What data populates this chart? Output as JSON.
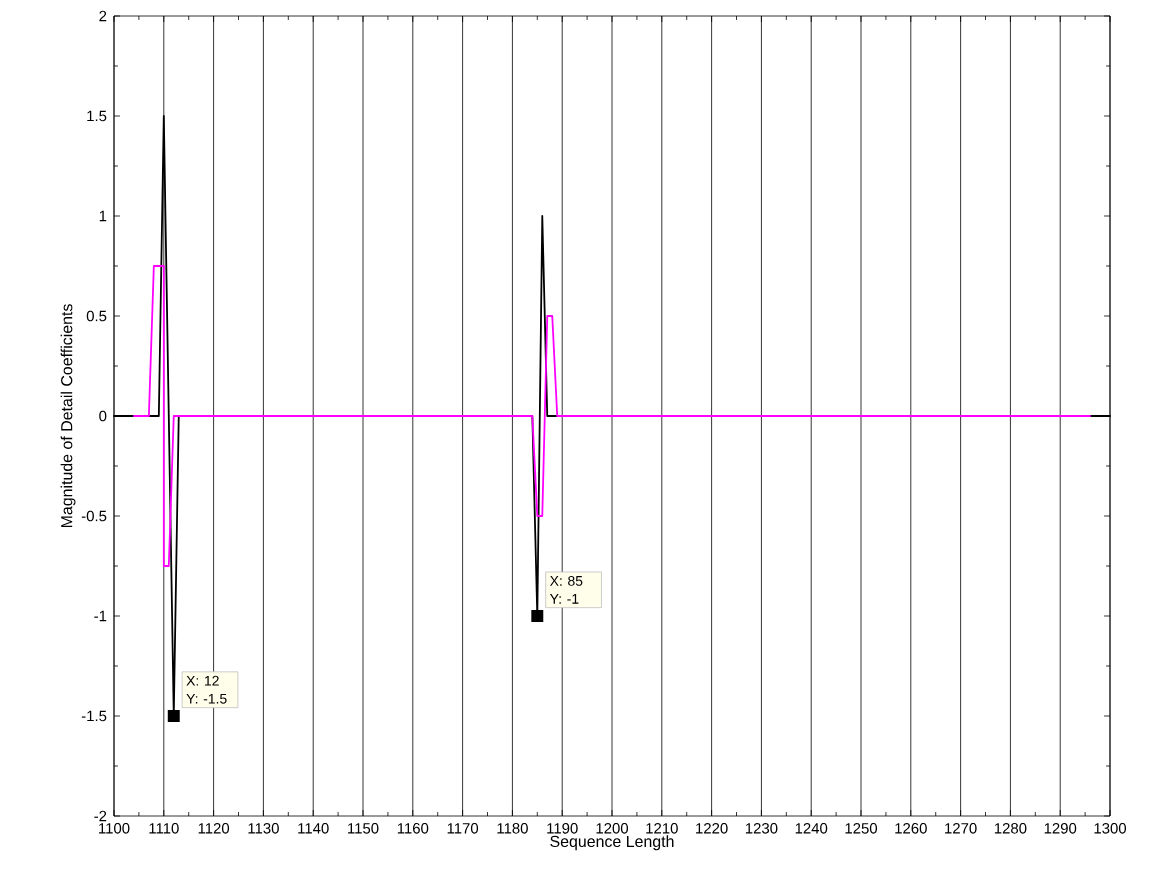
{
  "chart_data": {
    "type": "line",
    "xlabel": "Sequence Length",
    "ylabel": "Magnitude of Detail Coefficients",
    "series": [
      {
        "color": "#000000",
        "x": [
          1100,
          1109,
          1110,
          1112,
          1113,
          1184,
          1185,
          1186,
          1187,
          1300
        ],
        "values": [
          0,
          0,
          1.5,
          -1.5,
          0,
          0,
          -1,
          1,
          0,
          0
        ]
      },
      {
        "color": "#ff00ff",
        "x": [
          1104,
          1107,
          1108,
          1110,
          1110,
          1111,
          1112,
          1184,
          1185,
          1186,
          1187,
          1188,
          1189,
          1296
        ],
        "values": [
          0,
          0,
          0.75,
          0.75,
          -0.75,
          -0.75,
          0,
          0,
          -0.5,
          -0.5,
          0.5,
          0.5,
          0,
          0
        ]
      }
    ],
    "xlim": [
      1100,
      1300
    ],
    "xticks": [
      1100,
      1110,
      1120,
      1130,
      1140,
      1150,
      1160,
      1170,
      1180,
      1190,
      1200,
      1210,
      1220,
      1230,
      1240,
      1250,
      1260,
      1270,
      1280,
      1290,
      1300
    ],
    "ylim": [
      -2,
      2
    ],
    "yticks": [
      -2,
      -1.5,
      -1,
      -0.5,
      0,
      0.5,
      1,
      1.5,
      2
    ],
    "grid": "x",
    "marker": "none",
    "line_style": "solid",
    "annotations": [
      {
        "text": "X: 12 Y: -1.5",
        "x": 1112,
        "y": -1.5
      },
      {
        "text": "X: 85 Y: -1",
        "x": 1185,
        "y": -1
      }
    ]
  }
}
